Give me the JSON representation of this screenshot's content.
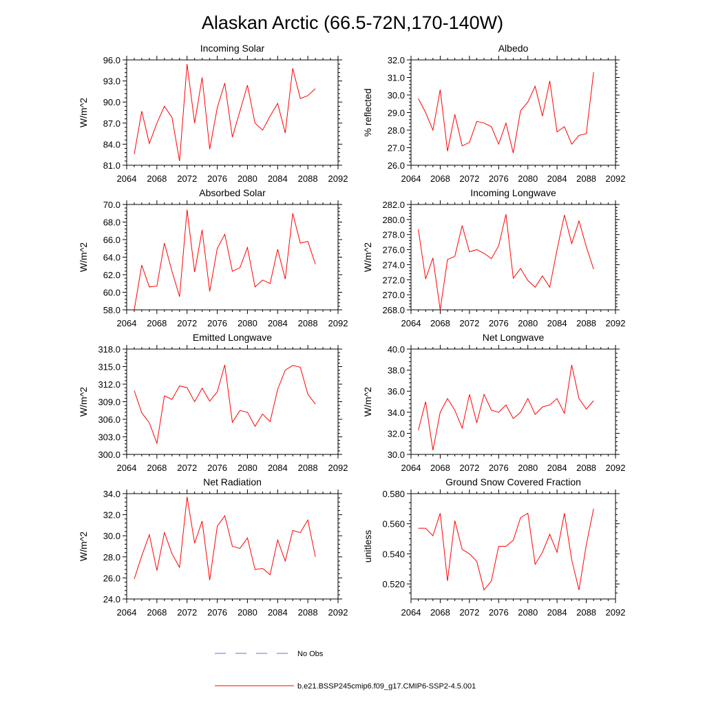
{
  "figure_title": "Alaskan Arctic (66.5-72N,170-140W)",
  "legend": [
    {
      "label": "No Obs",
      "color": "#6b6bd6",
      "style": "dashed"
    },
    {
      "label": "b.e21.BSSP245cmip6.f09_g17.CMIP6-SSP2-4.5.001",
      "color": "#ff0000",
      "style": "solid"
    }
  ],
  "chart_data": [
    {
      "type": "line",
      "title": "Incoming Solar",
      "xlabel": "",
      "ylabel": "W/m^2",
      "xlim": [
        2064,
        2092
      ],
      "ylim": [
        81,
        96
      ],
      "xticks": [
        2064,
        2068,
        2072,
        2076,
        2080,
        2084,
        2088,
        2092
      ],
      "yticks": [
        81,
        84,
        87,
        90,
        93,
        96
      ],
      "ytick_labels": [
        "81.0",
        "84.0",
        "87.0",
        "90.0",
        "93.0",
        "96.0"
      ],
      "series": [
        {
          "name": "b.e21.BSSP245cmip6.f09_g17.CMIP6-SSP2-4.5.001",
          "color": "#ff0000",
          "x": [
            2065,
            2066,
            2067,
            2068,
            2069,
            2070,
            2071,
            2072,
            2073,
            2074,
            2075,
            2076,
            2077,
            2078,
            2079,
            2080,
            2081,
            2082,
            2083,
            2084,
            2085,
            2086,
            2087,
            2088,
            2089
          ],
          "y": [
            82.6,
            88.7,
            84.1,
            87.0,
            89.4,
            87.8,
            81.6,
            95.4,
            87.0,
            93.5,
            83.3,
            89.2,
            92.7,
            85.0,
            88.7,
            92.4,
            87.0,
            86.0,
            88.0,
            89.8,
            85.6,
            94.8,
            90.5,
            90.9,
            91.9
          ]
        }
      ]
    },
    {
      "type": "line",
      "title": "Albedo",
      "xlabel": "",
      "ylabel": "% reflected",
      "xlim": [
        2064,
        2092
      ],
      "ylim": [
        26,
        32
      ],
      "xticks": [
        2064,
        2068,
        2072,
        2076,
        2080,
        2084,
        2088,
        2092
      ],
      "yticks": [
        26,
        27,
        28,
        29,
        30,
        31,
        32
      ],
      "ytick_labels": [
        "26.0",
        "27.0",
        "28.0",
        "29.0",
        "30.0",
        "31.0",
        "32.0"
      ],
      "series": [
        {
          "name": "b.e21.BSSP245cmip6.f09_g17.CMIP6-SSP2-4.5.001",
          "color": "#ff0000",
          "x": [
            2065,
            2066,
            2067,
            2068,
            2069,
            2070,
            2071,
            2072,
            2073,
            2074,
            2075,
            2076,
            2077,
            2078,
            2079,
            2080,
            2081,
            2082,
            2083,
            2084,
            2085,
            2086,
            2087,
            2088,
            2089
          ],
          "y": [
            29.8,
            29.0,
            28.0,
            30.3,
            26.8,
            28.9,
            27.1,
            27.3,
            28.5,
            28.4,
            28.2,
            27.2,
            28.4,
            26.7,
            29.1,
            29.6,
            30.5,
            28.8,
            30.8,
            27.9,
            28.2,
            27.2,
            27.7,
            27.8,
            31.3
          ]
        }
      ]
    },
    {
      "type": "line",
      "title": "Absorbed Solar",
      "xlabel": "",
      "ylabel": "W/m^2",
      "xlim": [
        2064,
        2092
      ],
      "ylim": [
        58,
        70
      ],
      "xticks": [
        2064,
        2068,
        2072,
        2076,
        2080,
        2084,
        2088,
        2092
      ],
      "yticks": [
        58,
        60,
        62,
        64,
        66,
        68,
        70
      ],
      "ytick_labels": [
        "58.0",
        "60.0",
        "62.0",
        "64.0",
        "66.0",
        "68.0",
        "70.0"
      ],
      "series": [
        {
          "name": "b.e21.BSSP245cmip6.f09_g17.CMIP6-SSP2-4.5.001",
          "color": "#ff0000",
          "x": [
            2065,
            2066,
            2067,
            2068,
            2069,
            2070,
            2071,
            2072,
            2073,
            2074,
            2075,
            2076,
            2077,
            2078,
            2079,
            2080,
            2081,
            2082,
            2083,
            2084,
            2085,
            2086,
            2087,
            2088,
            2089
          ],
          "y": [
            58.0,
            63.1,
            60.6,
            60.7,
            65.6,
            62.4,
            59.5,
            69.4,
            62.3,
            67.1,
            60.1,
            65.0,
            66.6,
            62.4,
            62.8,
            65.1,
            60.6,
            61.4,
            61.0,
            64.9,
            61.5,
            69.0,
            65.6,
            65.8,
            63.2
          ]
        }
      ]
    },
    {
      "type": "line",
      "title": "Incoming Longwave",
      "xlabel": "",
      "ylabel": "W/m^2",
      "xlim": [
        2064,
        2092
      ],
      "ylim": [
        268,
        282
      ],
      "xticks": [
        2064,
        2068,
        2072,
        2076,
        2080,
        2084,
        2088,
        2092
      ],
      "yticks": [
        268,
        270,
        272,
        274,
        276,
        278,
        280,
        282
      ],
      "ytick_labels": [
        "268.0",
        "270.0",
        "272.0",
        "274.0",
        "276.0",
        "278.0",
        "280.0",
        "282.0"
      ],
      "series": [
        {
          "name": "b.e21.BSSP245cmip6.f09_g17.CMIP6-SSP2-4.5.001",
          "color": "#ff0000",
          "x": [
            2065,
            2066,
            2067,
            2068,
            2069,
            2070,
            2071,
            2072,
            2073,
            2074,
            2075,
            2076,
            2077,
            2078,
            2079,
            2080,
            2081,
            2082,
            2083,
            2084,
            2085,
            2086,
            2087,
            2088,
            2089
          ],
          "y": [
            278.7,
            272.1,
            274.9,
            268.0,
            274.7,
            275.1,
            279.2,
            275.7,
            276.0,
            275.5,
            274.8,
            276.5,
            280.7,
            272.2,
            273.5,
            271.9,
            271.0,
            272.5,
            271.0,
            276.0,
            280.6,
            276.8,
            279.8,
            276.4,
            273.4
          ]
        }
      ]
    },
    {
      "type": "line",
      "title": "Emitted Longwave",
      "xlabel": "",
      "ylabel": "W/m^2",
      "xlim": [
        2064,
        2092
      ],
      "ylim": [
        300,
        318
      ],
      "xticks": [
        2064,
        2068,
        2072,
        2076,
        2080,
        2084,
        2088,
        2092
      ],
      "yticks": [
        300,
        303,
        306,
        309,
        312,
        315,
        318
      ],
      "ytick_labels": [
        "300.0",
        "303.0",
        "306.0",
        "309.0",
        "312.0",
        "315.0",
        "318.0"
      ],
      "series": [
        {
          "name": "b.e21.BSSP245cmip6.f09_g17.CMIP6-SSP2-4.5.001",
          "color": "#ff0000",
          "x": [
            2065,
            2066,
            2067,
            2068,
            2069,
            2070,
            2071,
            2072,
            2073,
            2074,
            2075,
            2076,
            2077,
            2078,
            2079,
            2080,
            2081,
            2082,
            2083,
            2084,
            2085,
            2086,
            2087,
            2088,
            2089
          ],
          "y": [
            310.9,
            307.1,
            305.4,
            301.9,
            310.0,
            309.4,
            311.7,
            311.4,
            309.0,
            311.3,
            309.1,
            310.7,
            315.3,
            305.5,
            307.5,
            307.2,
            304.8,
            306.9,
            305.6,
            311.1,
            314.4,
            315.2,
            314.9,
            310.3,
            308.6
          ]
        }
      ]
    },
    {
      "type": "line",
      "title": "Net Longwave",
      "xlabel": "",
      "ylabel": "W/m^2",
      "xlim": [
        2064,
        2092
      ],
      "ylim": [
        30,
        40
      ],
      "xticks": [
        2064,
        2068,
        2072,
        2076,
        2080,
        2084,
        2088,
        2092
      ],
      "yticks": [
        30,
        32,
        34,
        36,
        38,
        40
      ],
      "ytick_labels": [
        "30.0",
        "32.0",
        "34.0",
        "36.0",
        "38.0",
        "40.0"
      ],
      "series": [
        {
          "name": "b.e21.BSSP245cmip6.f09_g17.CMIP6-SSP2-4.5.001",
          "color": "#ff0000",
          "x": [
            2065,
            2066,
            2067,
            2068,
            2069,
            2070,
            2071,
            2072,
            2073,
            2074,
            2075,
            2076,
            2077,
            2078,
            2079,
            2080,
            2081,
            2082,
            2083,
            2084,
            2085,
            2086,
            2087,
            2088,
            2089
          ],
          "y": [
            32.3,
            35.0,
            30.4,
            34.0,
            35.3,
            34.2,
            32.5,
            35.7,
            33.0,
            35.7,
            34.2,
            34.0,
            34.7,
            33.4,
            34.0,
            35.3,
            33.8,
            34.5,
            34.7,
            35.3,
            33.9,
            38.5,
            35.3,
            34.3,
            35.1
          ]
        }
      ]
    },
    {
      "type": "line",
      "title": "Net Radiation",
      "xlabel": "",
      "ylabel": "W/m^2",
      "xlim": [
        2064,
        2092
      ],
      "ylim": [
        24,
        34
      ],
      "xticks": [
        2064,
        2068,
        2072,
        2076,
        2080,
        2084,
        2088,
        2092
      ],
      "yticks": [
        24,
        26,
        28,
        30,
        32,
        34
      ],
      "ytick_labels": [
        "24.0",
        "26.0",
        "28.0",
        "30.0",
        "32.0",
        "34.0"
      ],
      "series": [
        {
          "name": "b.e21.BSSP245cmip6.f09_g17.CMIP6-SSP2-4.5.001",
          "color": "#ff0000",
          "x": [
            2065,
            2066,
            2067,
            2068,
            2069,
            2070,
            2071,
            2072,
            2073,
            2074,
            2075,
            2076,
            2077,
            2078,
            2079,
            2080,
            2081,
            2082,
            2083,
            2084,
            2085,
            2086,
            2087,
            2088,
            2089
          ],
          "y": [
            25.9,
            28.1,
            30.1,
            26.7,
            30.3,
            28.3,
            27.0,
            33.7,
            29.3,
            31.4,
            25.8,
            30.9,
            31.9,
            29.0,
            28.8,
            29.8,
            26.8,
            26.9,
            26.3,
            29.6,
            27.6,
            30.5,
            30.3,
            31.5,
            28.0
          ]
        }
      ]
    },
    {
      "type": "line",
      "title": "Ground Snow Covered Fraction",
      "xlabel": "",
      "ylabel": "unitless",
      "xlim": [
        2064,
        2092
      ],
      "ylim": [
        0.51,
        0.58
      ],
      "xticks": [
        2064,
        2068,
        2072,
        2076,
        2080,
        2084,
        2088,
        2092
      ],
      "yticks": [
        0.52,
        0.54,
        0.56,
        0.58
      ],
      "ytick_labels": [
        "0.520",
        "0.540",
        "0.560",
        "0.580"
      ],
      "series": [
        {
          "name": "b.e21.BSSP245cmip6.f09_g17.CMIP6-SSP2-4.5.001",
          "color": "#ff0000",
          "x": [
            2065,
            2066,
            2067,
            2068,
            2069,
            2070,
            2071,
            2072,
            2073,
            2074,
            2075,
            2076,
            2077,
            2078,
            2079,
            2080,
            2081,
            2082,
            2083,
            2084,
            2085,
            2086,
            2087,
            2088,
            2089
          ],
          "y": [
            0.557,
            0.557,
            0.552,
            0.567,
            0.522,
            0.562,
            0.543,
            0.54,
            0.535,
            0.516,
            0.522,
            0.545,
            0.545,
            0.549,
            0.564,
            0.567,
            0.533,
            0.541,
            0.553,
            0.541,
            0.567,
            0.536,
            0.516,
            0.546,
            0.57
          ]
        }
      ]
    }
  ]
}
